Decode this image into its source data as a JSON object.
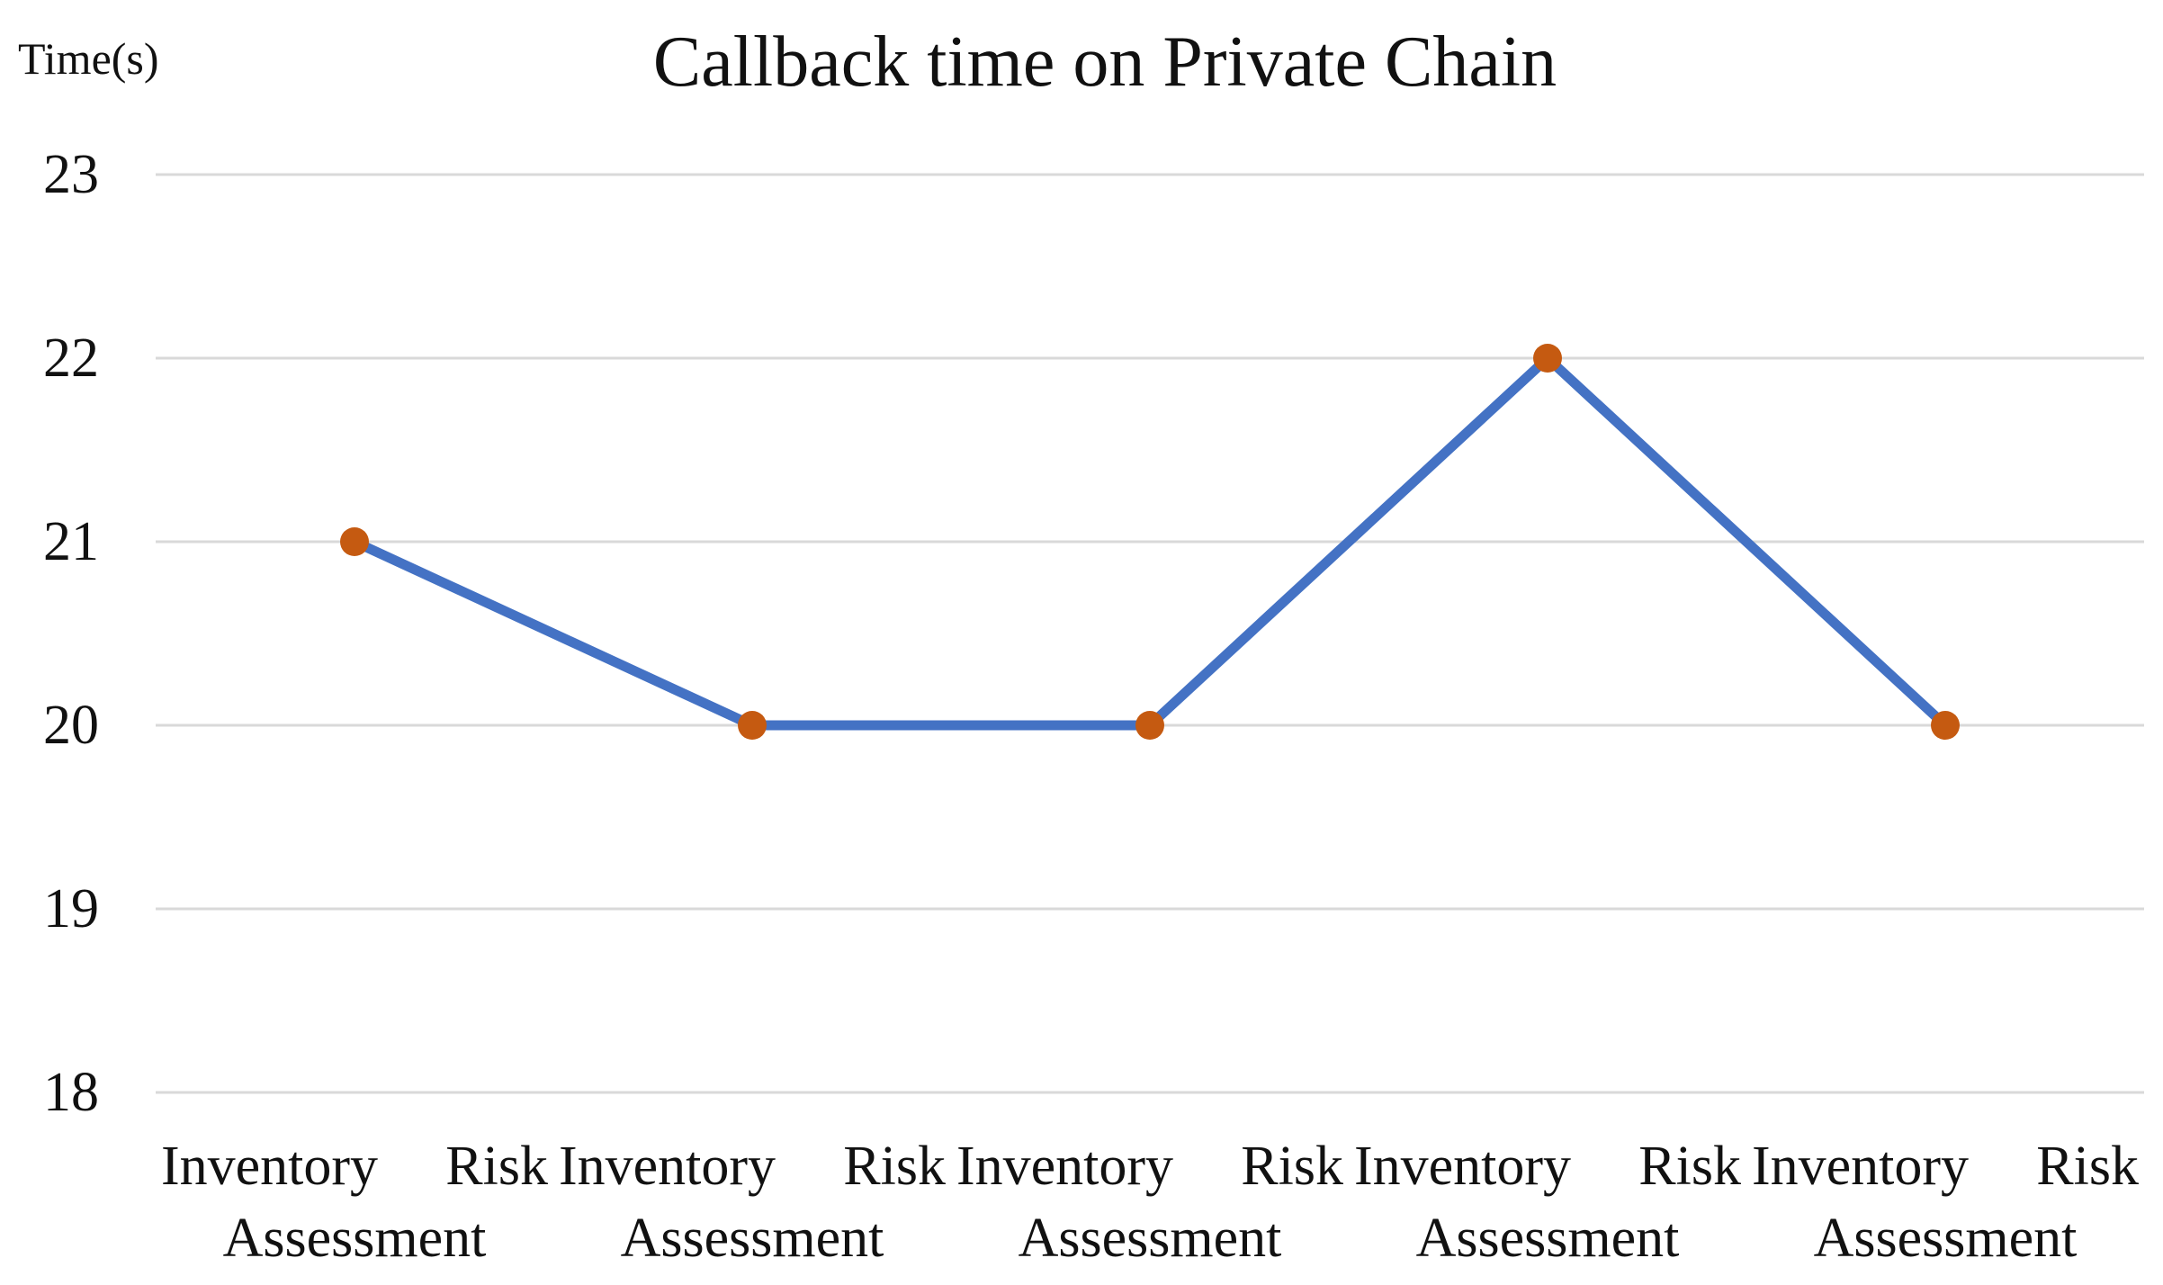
{
  "chart_data": {
    "type": "line",
    "title": "Callback time on Private Chain",
    "ylabel": "Time(s)",
    "xlabel": "",
    "ylim": [
      18,
      23
    ],
    "yticks": [
      18,
      19,
      20,
      21,
      22,
      23
    ],
    "grid": true,
    "legend": "none",
    "categories": [
      [
        "Inventory",
        "Risk",
        "Assessment"
      ],
      [
        "Inventory",
        "Risk",
        "Assessment"
      ],
      [
        "Inventory",
        "Risk",
        "Assessment"
      ],
      [
        "Inventory",
        "Risk",
        "Assessment"
      ],
      [
        "Inventory",
        "Risk",
        "Assessment"
      ]
    ],
    "series": [
      {
        "values": [
          21,
          20,
          20,
          22,
          20
        ],
        "line_color": "#4472c4",
        "marker_color": "#c55a11"
      }
    ]
  }
}
